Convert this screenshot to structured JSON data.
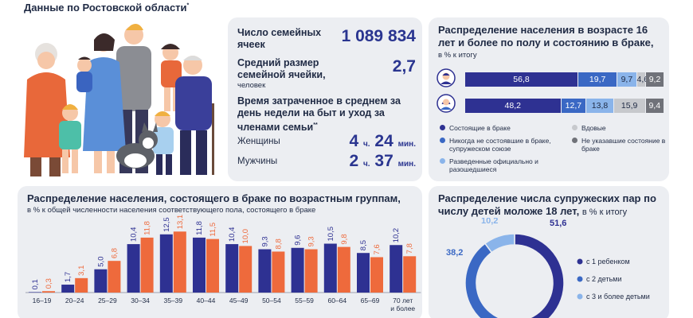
{
  "header": {
    "subtitle": "Данные по Ростовской области",
    "subtitle_mark": "*"
  },
  "stats": {
    "families_label": "Число семейных ячеек",
    "families_value": "1 089 834",
    "avg_size_label": "Средний размер семейной ячейки,",
    "avg_size_unit": "человек",
    "avg_size_value": "2,7",
    "time_label": "Время затраченное в среднем за день недели на быт и уход за членами семьи",
    "time_mark": "**",
    "women_label": "Женщины",
    "women_h": "4",
    "women_m": "24",
    "men_label": "Мужчины",
    "men_h": "2",
    "men_m": "37",
    "unit_h": "ч.",
    "unit_m": "мин."
  },
  "icons": {
    "male": "man-icon",
    "female": "woman-icon"
  },
  "colors": {
    "navy": "#2e3192",
    "blue": "#3a68c4",
    "light_blue": "#8ab4ea",
    "light_gray": "#c7c9cd",
    "dark_gray": "#707279",
    "orange": "#ee6a3c"
  },
  "chart_data": [
    {
      "type": "bar",
      "stacked": true,
      "orientation": "horizontal",
      "title": "Распределение населения в возрасте 16 лет и более по полу и состоянию в браке,",
      "subtitle": "в % к итогу",
      "categories": [
        "male",
        "female"
      ],
      "series": [
        {
          "name": "Состоящие в браке",
          "values": [
            56.8,
            48.2
          ],
          "labels": [
            "56,8",
            "48,2"
          ]
        },
        {
          "name": "Никогда не состоявшие в браке, супружеском союзе",
          "values": [
            19.7,
            12.7
          ],
          "labels": [
            "19,7",
            "12,7"
          ]
        },
        {
          "name": "Разведенные официально и разошедшиеся",
          "values": [
            9.7,
            13.8
          ],
          "labels": [
            "9,7",
            "13,8"
          ]
        },
        {
          "name": "Вдовые",
          "values": [
            4.6,
            15.9
          ],
          "labels": [
            "4,6",
            "15,9"
          ]
        },
        {
          "name": "Не указавшие состояние в браке",
          "values": [
            9.2,
            9.4
          ],
          "labels": [
            "9,2",
            "9,4"
          ]
        }
      ],
      "legend": "bottom"
    },
    {
      "type": "bar",
      "title": "Распределение населения, состоящего в браке по возрастным группам,",
      "subtitle": "в % к общей численности населения соответствующего пола, состоящего в браке",
      "categories": [
        "16–19",
        "20–24",
        "25–29",
        "30–34",
        "35–39",
        "40–44",
        "45–49",
        "50–54",
        "55–59",
        "60–64",
        "65–69",
        "70 лет и более"
      ],
      "series": [
        {
          "values": [
            0.1,
            1.7,
            5.0,
            10.4,
            12.5,
            11.8,
            10.4,
            9.3,
            9.6,
            10.5,
            8.5,
            10.2
          ],
          "labels": [
            "0,1",
            "1,7",
            "5,0",
            "10,4",
            "12,5",
            "11,8",
            "10,4",
            "9,3",
            "9,6",
            "10,5",
            "8,5",
            "10,2"
          ]
        },
        {
          "values": [
            0.3,
            3.1,
            6.8,
            11.8,
            13.1,
            11.5,
            10.0,
            8.8,
            9.3,
            9.8,
            7.6,
            7.8
          ],
          "labels": [
            "0,3",
            "3,1",
            "6,8",
            "11,8",
            "13,1",
            "11,5",
            "10,0",
            "8,8",
            "9,3",
            "9,8",
            "7,6",
            "7,8"
          ]
        }
      ],
      "ylim": [
        0,
        14
      ]
    },
    {
      "type": "pie",
      "donut": true,
      "title": "Распределение числа супружеских пар по числу детей моложе 18 лет,",
      "subtitle": "в % к итогу",
      "slices": [
        {
          "name": "с 1 ребенком",
          "value": 51.6,
          "label": "51,6"
        },
        {
          "name": "с 2 детьми",
          "value": 38.2,
          "label": "38,2"
        },
        {
          "name": "с 3 и более детьми",
          "value": 10.2,
          "label": "10,2"
        }
      ],
      "legend": "right"
    }
  ]
}
